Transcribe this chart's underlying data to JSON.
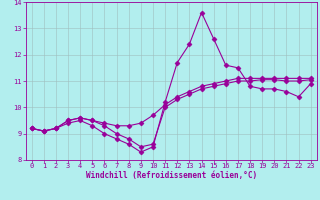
{
  "xlabel": "Windchill (Refroidissement éolien,°C)",
  "x": [
    0,
    1,
    2,
    3,
    4,
    5,
    6,
    7,
    8,
    9,
    10,
    11,
    12,
    13,
    14,
    15,
    16,
    17,
    18,
    19,
    20,
    21,
    22,
    23
  ],
  "line1": [
    9.2,
    9.1,
    9.2,
    9.4,
    9.5,
    9.3,
    9.0,
    8.8,
    8.6,
    8.3,
    8.5,
    10.2,
    11.7,
    12.4,
    13.6,
    12.6,
    11.6,
    11.5,
    10.8,
    10.7,
    10.7,
    10.6,
    10.4,
    10.9
  ],
  "line2": [
    9.2,
    9.1,
    9.2,
    9.5,
    9.6,
    9.5,
    9.4,
    9.3,
    9.3,
    9.4,
    9.7,
    10.1,
    10.4,
    10.6,
    10.8,
    10.9,
    11.0,
    11.1,
    11.1,
    11.1,
    11.1,
    11.1,
    11.1,
    11.1
  ],
  "line3": [
    9.2,
    9.1,
    9.2,
    9.5,
    9.6,
    9.5,
    9.3,
    9.0,
    8.8,
    8.5,
    8.6,
    10.0,
    10.3,
    10.5,
    10.7,
    10.8,
    10.9,
    11.0,
    11.0,
    11.05,
    11.05,
    11.0,
    11.0,
    11.05
  ],
  "line_color": "#990099",
  "bg_color": "#b2eeee",
  "grid_color": "#9fbfbf",
  "ylim": [
    8.0,
    14.0
  ],
  "xlim": [
    -0.5,
    23.5
  ],
  "yticks": [
    8,
    9,
    10,
    11,
    12,
    13,
    14
  ],
  "xticks": [
    0,
    1,
    2,
    3,
    4,
    5,
    6,
    7,
    8,
    9,
    10,
    11,
    12,
    13,
    14,
    15,
    16,
    17,
    18,
    19,
    20,
    21,
    22,
    23
  ],
  "tick_fontsize": 5.0,
  "xlabel_fontsize": 5.5,
  "marker_size": 2.5,
  "line_width": 0.8
}
